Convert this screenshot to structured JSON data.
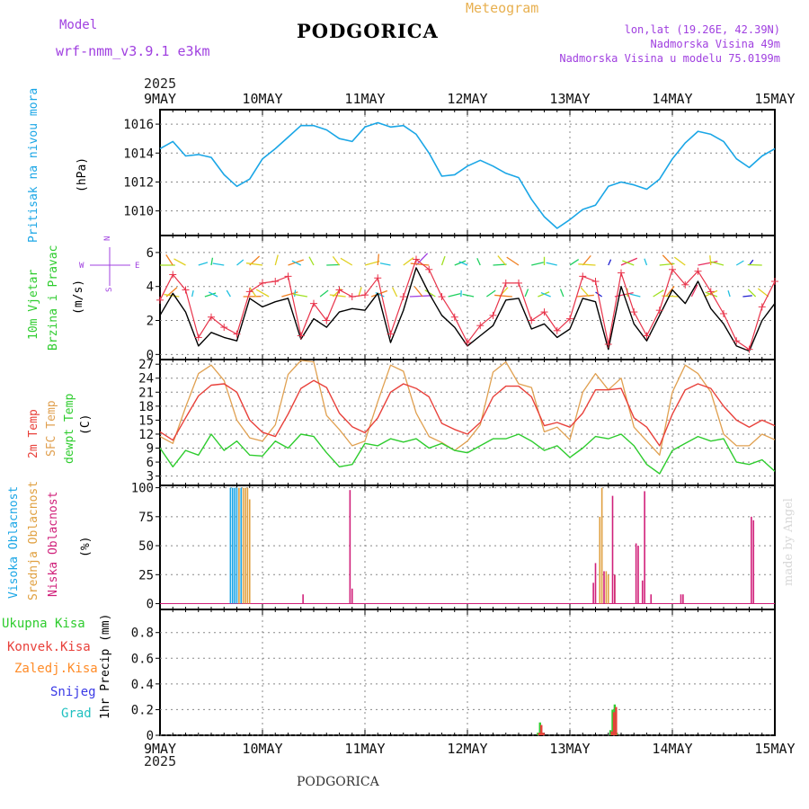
{
  "header": {
    "model_label": "Model",
    "model_name": "wrf-nmm_v3.9.1  e3km",
    "title": "PODGORICA",
    "meteogram": "Meteogram",
    "lonlat": "lon,lat (19.26E, 42.39N)",
    "altitude": "Nadmorska Visina 49m",
    "model_altitude": "Nadmorska Visina u modelu 75.0199m",
    "footer": "PODGORICA",
    "credit": "made by Angel"
  },
  "colors": {
    "pressure": "#1aa6e6",
    "wind_speed": "#000000",
    "wind_gust": "#e8334a",
    "temp2m": "#e8403a",
    "sfc_temp": "#e0a050",
    "dewpoint": "#2ecc2e",
    "cloud_high": "#1aa6e6",
    "cloud_mid": "#e0a040",
    "cloud_low": "#d0207a",
    "precip_total": "#2ecc2e",
    "precip_conv": "#e8403a",
    "precip_strat": "#ff8c28",
    "snow": "#3a3ae6",
    "hail": "#20c0c0",
    "compass": "#a040e0"
  },
  "time_axis": {
    "year": "2025",
    "days": [
      "9MAY",
      "10MAY",
      "11MAY",
      "12MAY",
      "13MAY",
      "14MAY",
      "15MAY"
    ]
  },
  "panels": {
    "pressure": {
      "labels": [
        "Pritisak na nivou mora"
      ],
      "unit": "(hPa)"
    },
    "wind": {
      "labels": [
        "10m Vjetar",
        "Brzina i Pravac"
      ],
      "unit": "(m/s)",
      "compass": {
        "n": "N",
        "s": "S",
        "e": "E",
        "w": "W"
      }
    },
    "temp": {
      "labels": [
        "2m Temp",
        "SFC Temp",
        "dewpt Temp"
      ],
      "unit": "(C)"
    },
    "cloud": {
      "labels": [
        "Visoka Oblacnost",
        "Srednja Oblacnost",
        "Niska Oblacnost"
      ],
      "unit": "(%)"
    },
    "precip": {
      "labels": [
        "Ukupna Kisa",
        "Konvek.Kisa",
        "Zaledj.Kisa",
        "Snijeg",
        "Grad"
      ],
      "unit": "1hr Precip (mm)"
    }
  },
  "chart_data": [
    {
      "type": "line",
      "title": "Pritisak na nivou mora",
      "ylabel": "(hPa)",
      "xlim": [
        0,
        144
      ],
      "ylim": [
        1008.3,
        1017
      ],
      "yticks": [
        1010,
        1012,
        1014,
        1016
      ],
      "grid": true,
      "series": [
        {
          "name": "Pritisak na nivou mora",
          "x": [
            0,
            3,
            6,
            9,
            12,
            15,
            18,
            21,
            24,
            27,
            30,
            33,
            36,
            39,
            42,
            45,
            48,
            51,
            54,
            57,
            60,
            63,
            66,
            69,
            72,
            75,
            78,
            81,
            84,
            87,
            90,
            93,
            96,
            99,
            102,
            105,
            108,
            111,
            114,
            117,
            120,
            123,
            126,
            129,
            132,
            135,
            138,
            141,
            144
          ],
          "y": [
            1014.3,
            1014.8,
            1013.8,
            1013.9,
            1013.7,
            1012.5,
            1011.7,
            1012.2,
            1013.6,
            1014.3,
            1015.1,
            1015.9,
            1015.9,
            1015.6,
            1015.0,
            1014.8,
            1015.8,
            1016.1,
            1015.8,
            1015.9,
            1015.3,
            1014.0,
            1012.4,
            1012.5,
            1013.1,
            1013.5,
            1013.1,
            1012.6,
            1012.3,
            1010.8,
            1009.6,
            1008.8,
            1009.4,
            1010.1,
            1010.4,
            1011.7,
            1012.0,
            1011.8,
            1011.5,
            1012.2,
            1013.6,
            1014.7,
            1015.5,
            1015.3,
            1014.8,
            1013.6,
            1013.0,
            1013.8,
            1014.3
          ]
        }
      ]
    },
    {
      "type": "line",
      "title": "10m Vjetar Brzina i Pravac",
      "ylabel": "(m/s)",
      "xlim": [
        0,
        144
      ],
      "ylim": [
        -0.3,
        7
      ],
      "yticks": [
        0,
        2,
        4,
        6
      ],
      "grid": true,
      "series": [
        {
          "name": "wind speed",
          "x": [
            0,
            3,
            6,
            9,
            12,
            15,
            18,
            21,
            24,
            27,
            30,
            33,
            36,
            39,
            42,
            45,
            48,
            51,
            54,
            57,
            60,
            63,
            66,
            69,
            72,
            75,
            78,
            81,
            84,
            87,
            90,
            93,
            96,
            99,
            102,
            105,
            108,
            111,
            114,
            117,
            120,
            123,
            126,
            129,
            132,
            135,
            138,
            141,
            144
          ],
          "y": [
            2.3,
            3.6,
            2.5,
            0.5,
            1.3,
            1.0,
            0.8,
            3.3,
            2.8,
            3.1,
            3.3,
            0.9,
            2.1,
            1.6,
            2.5,
            2.7,
            2.6,
            3.6,
            0.7,
            2.6,
            5.1,
            3.6,
            2.3,
            1.6,
            0.5,
            1.1,
            1.7,
            3.2,
            3.3,
            1.5,
            1.8,
            1.0,
            1.5,
            3.3,
            3.1,
            0.3,
            4.0,
            1.8,
            0.8,
            2.3,
            3.8,
            3.0,
            4.3,
            2.7,
            1.8,
            0.5,
            0.2,
            2.0,
            3.0
          ]
        },
        {
          "name": "gust",
          "x": [
            0,
            3,
            6,
            9,
            12,
            15,
            18,
            21,
            24,
            27,
            30,
            33,
            36,
            39,
            42,
            45,
            48,
            51,
            54,
            57,
            60,
            63,
            66,
            69,
            72,
            75,
            78,
            81,
            84,
            87,
            90,
            93,
            96,
            99,
            102,
            105,
            108,
            111,
            114,
            117,
            120,
            123,
            126,
            129,
            132,
            135,
            138,
            141,
            144
          ],
          "y": [
            3.2,
            4.7,
            3.8,
            1.0,
            2.2,
            1.6,
            1.2,
            3.7,
            4.2,
            4.3,
            4.6,
            1.1,
            3.0,
            2.0,
            3.8,
            3.4,
            3.5,
            4.5,
            1.2,
            3.4,
            5.6,
            5.0,
            3.4,
            2.2,
            0.7,
            1.7,
            2.3,
            4.2,
            4.2,
            2.0,
            2.5,
            1.4,
            2.1,
            4.6,
            4.3,
            0.6,
            4.8,
            2.5,
            1.1,
            2.6,
            5.0,
            4.1,
            4.9,
            3.7,
            2.4,
            0.8,
            0.3,
            2.8,
            4.3
          ]
        }
      ]
    },
    {
      "type": "line",
      "title": "",
      "ylabel": "(C)",
      "xlim": [
        0,
        144
      ],
      "ylim": [
        1,
        28
      ],
      "yticks": [
        3,
        6,
        9,
        12,
        15,
        18,
        21,
        24,
        27
      ],
      "grid": true,
      "series": [
        {
          "name": "2m Temp",
          "x": [
            0,
            3,
            6,
            9,
            12,
            15,
            18,
            21,
            24,
            27,
            30,
            33,
            36,
            39,
            42,
            45,
            48,
            51,
            54,
            57,
            60,
            63,
            66,
            69,
            72,
            75,
            78,
            81,
            84,
            87,
            90,
            93,
            96,
            99,
            102,
            105,
            108,
            111,
            114,
            117,
            120,
            123,
            126,
            129,
            132,
            135,
            138,
            141,
            144
          ],
          "y": [
            12.5,
            10.7,
            15.5,
            20.2,
            22.5,
            22.8,
            21.0,
            15.0,
            12.4,
            11.5,
            16.3,
            21.8,
            23.5,
            22.0,
            16.5,
            13.6,
            12.3,
            15.5,
            21.0,
            22.8,
            21.8,
            20.0,
            14.3,
            13.0,
            12.0,
            14.5,
            20.0,
            22.3,
            22.3,
            20.0,
            13.8,
            14.5,
            13.5,
            16.5,
            21.5,
            21.5,
            21.8,
            15.5,
            13.5,
            9.5,
            16.3,
            21.5,
            22.8,
            21.8,
            18.0,
            15.0,
            13.5,
            15.0,
            13.8
          ]
        },
        {
          "name": "SFC Temp",
          "x": [
            0,
            3,
            6,
            9,
            12,
            15,
            18,
            21,
            24,
            27,
            30,
            33,
            36,
            39,
            42,
            45,
            48,
            51,
            54,
            57,
            60,
            63,
            66,
            69,
            72,
            75,
            78,
            81,
            84,
            87,
            90,
            93,
            96,
            99,
            102,
            105,
            108,
            111,
            114,
            117,
            120,
            123,
            126,
            129,
            132,
            135,
            138,
            141,
            144
          ],
          "y": [
            11.5,
            10.0,
            17.8,
            25.0,
            26.8,
            23.5,
            15.0,
            11.2,
            10.5,
            14.0,
            24.8,
            27.8,
            27.5,
            16.0,
            13.0,
            9.5,
            10.5,
            19.0,
            26.8,
            25.5,
            16.5,
            11.5,
            10.2,
            8.5,
            10.5,
            14.0,
            25.3,
            27.5,
            22.8,
            22.0,
            12.5,
            13.5,
            10.8,
            21.0,
            25.0,
            21.5,
            24.0,
            13.5,
            10.5,
            7.5,
            21.0,
            26.8,
            25.0,
            21.0,
            12.0,
            9.5,
            9.5,
            12.0,
            10.8
          ]
        },
        {
          "name": "dewpt Temp",
          "x": [
            0,
            3,
            6,
            9,
            12,
            15,
            18,
            21,
            24,
            27,
            30,
            33,
            36,
            39,
            42,
            45,
            48,
            51,
            54,
            57,
            60,
            63,
            66,
            69,
            72,
            75,
            78,
            81,
            84,
            87,
            90,
            93,
            96,
            99,
            102,
            105,
            108,
            111,
            114,
            117,
            120,
            123,
            126,
            129,
            132,
            135,
            138,
            141,
            144
          ],
          "y": [
            9.0,
            5.0,
            8.5,
            7.5,
            12.0,
            8.5,
            10.5,
            7.5,
            7.3,
            10.5,
            9.0,
            12.0,
            11.5,
            8.0,
            5.0,
            5.5,
            10.0,
            9.5,
            11.0,
            10.3,
            11.0,
            9.0,
            10.0,
            8.5,
            8.0,
            9.5,
            11.0,
            11.0,
            12.0,
            10.5,
            8.5,
            9.5,
            7.0,
            9.0,
            11.5,
            11.0,
            12.0,
            9.5,
            5.5,
            3.5,
            8.5,
            10.0,
            11.5,
            10.5,
            11.0,
            6.0,
            5.5,
            6.5,
            4.0
          ]
        }
      ]
    },
    {
      "type": "bar",
      "title": "",
      "ylabel": "(%)",
      "xlim": [
        0,
        144
      ],
      "ylim": [
        -5,
        102
      ],
      "yticks": [
        0,
        25,
        50,
        75,
        100
      ],
      "grid": true,
      "series": [
        {
          "name": "Visoka Oblacnost",
          "x": [
            16.5,
            17,
            17.5,
            18,
            19
          ],
          "values": [
            100,
            100,
            100,
            100,
            100
          ]
        },
        {
          "name": "Srednja Oblacnost",
          "x": [
            18.5,
            19.5,
            20,
            20.5,
            21,
            103,
            103.5,
            104.5,
            105,
            106.5
          ],
          "values": [
            100,
            100,
            100,
            100,
            90,
            75,
            100,
            28,
            25,
            25
          ]
        },
        {
          "name": "Niska Oblacnost",
          "x": [
            33.5,
            44.5,
            45,
            101.5,
            102,
            104,
            106,
            106.5,
            111.5,
            112,
            113,
            113.5,
            115,
            122,
            122.5,
            138.5,
            139
          ],
          "values": [
            8,
            98,
            13,
            18,
            35,
            28,
            93,
            25,
            52,
            50,
            20,
            97,
            8,
            8,
            8,
            75,
            72
          ]
        }
      ]
    },
    {
      "type": "bar",
      "title": "",
      "ylabel": "1hr Precip (mm)",
      "xlim": [
        0,
        144
      ],
      "ylim": [
        0,
        0.98
      ],
      "yticks": [
        0,
        0.2,
        0.4,
        0.6,
        0.8
      ],
      "grid": true,
      "series": [
        {
          "name": "Ukupna Kisa",
          "x": [
            88.5,
            89,
            89.5,
            105.5,
            106,
            106.5,
            107
          ],
          "values": [
            0.02,
            0.1,
            0.02,
            0.04,
            0.2,
            0.24,
            0.02
          ]
        },
        {
          "name": "Konvek.Kisa",
          "x": [
            88.5,
            89,
            89.5,
            105.5,
            106,
            106.5
          ],
          "values": [
            0.02,
            0.08,
            0.02,
            0.03,
            0.18,
            0.22
          ]
        },
        {
          "name": "Zaledj.Kisa",
          "x": [],
          "values": []
        },
        {
          "name": "Snijeg",
          "x": [],
          "values": []
        },
        {
          "name": "Grad",
          "x": [],
          "values": []
        }
      ]
    }
  ]
}
